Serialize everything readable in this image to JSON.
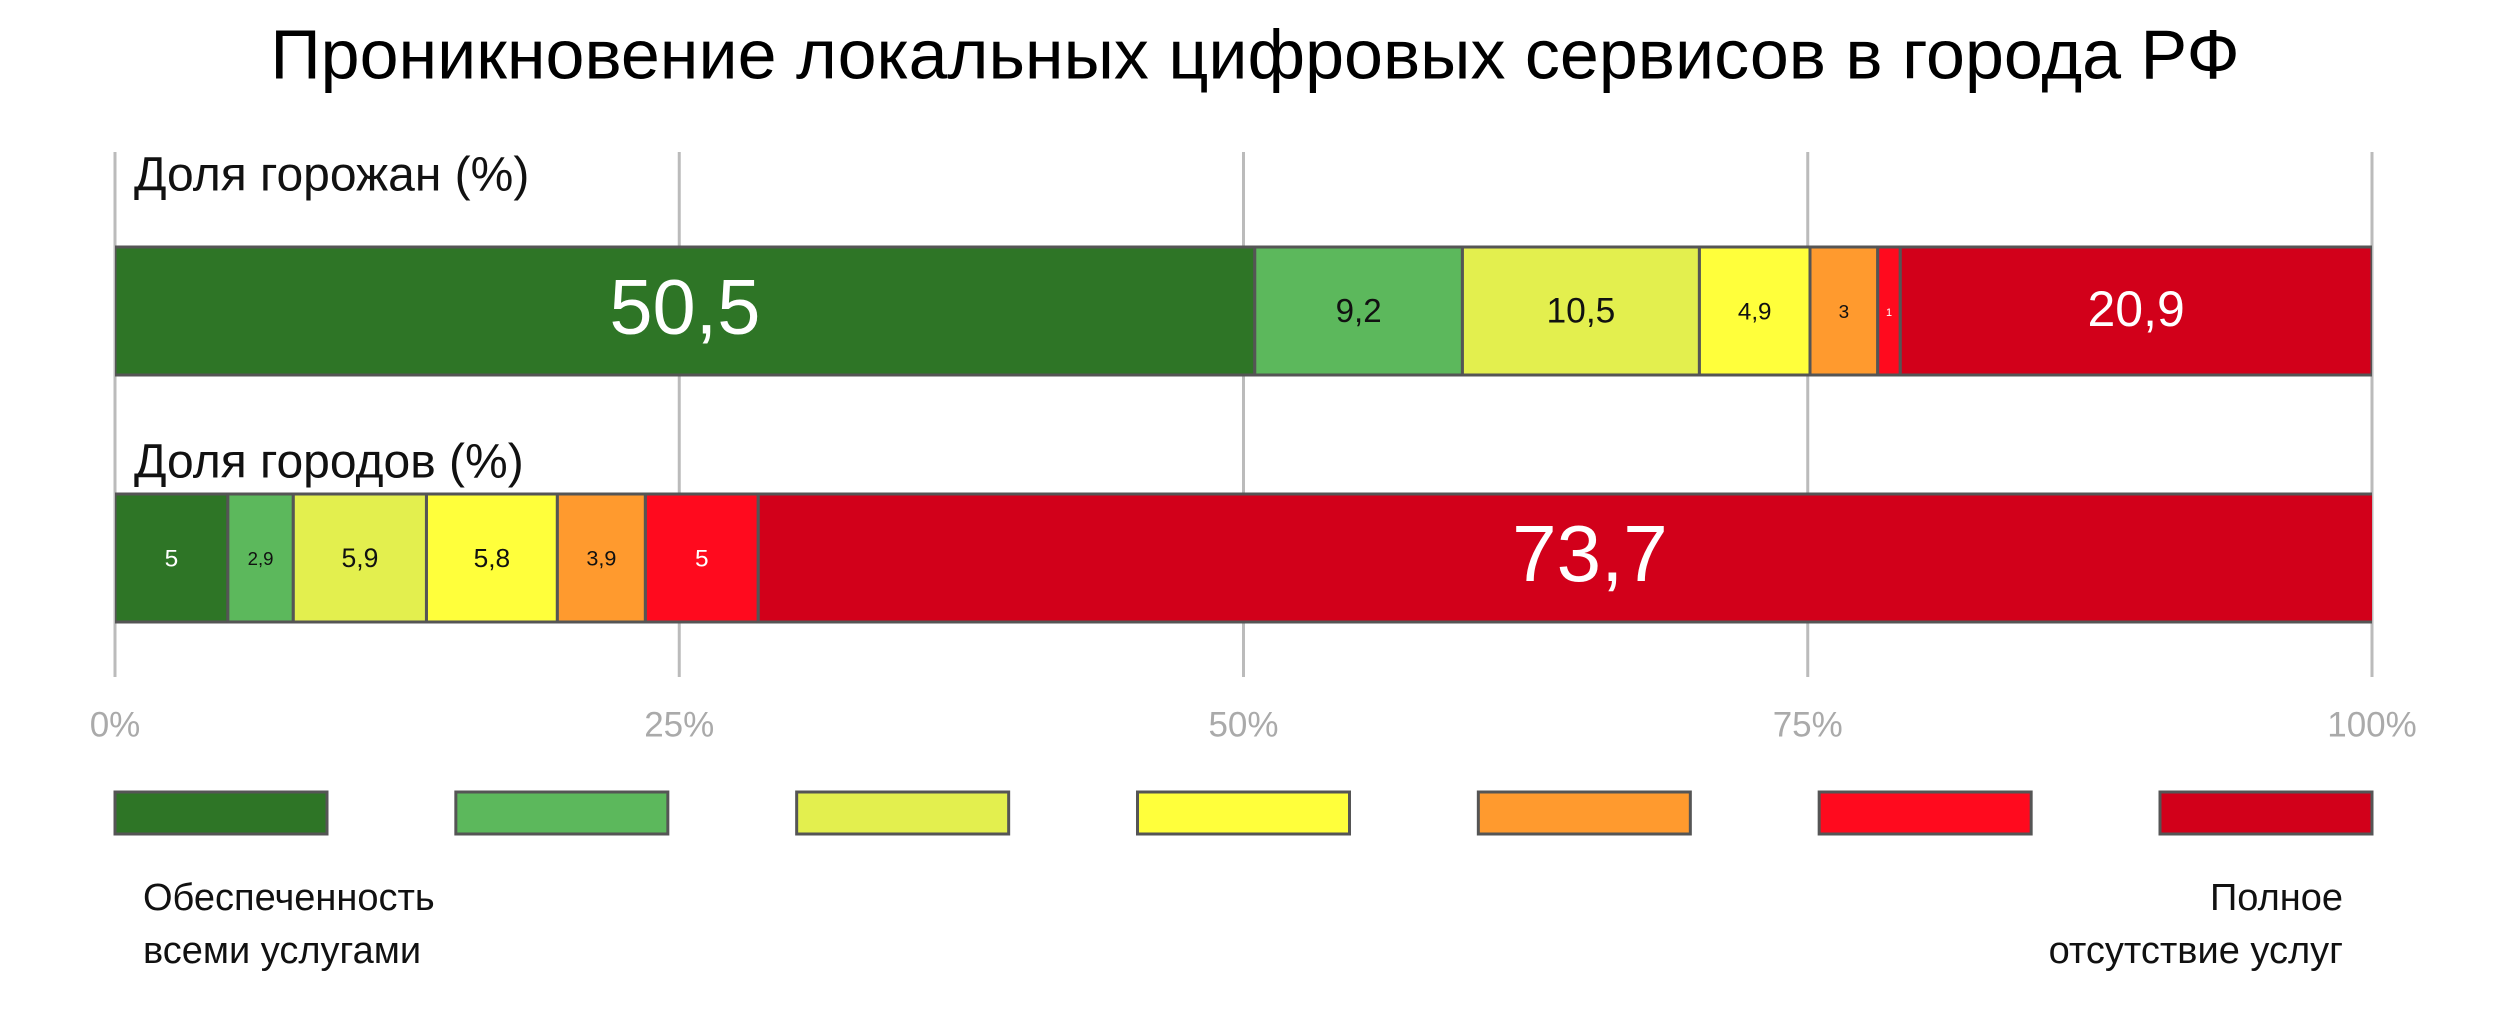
{
  "chart_data": {
    "type": "stacked_bar_horizontal",
    "title": "Проникновение локальных цифровых сервисов в города РФ",
    "categories": [
      "Доля горожан (%)",
      "Доля городов (%)"
    ],
    "series": [
      {
        "color": "#2e7526",
        "values": [
          50.5,
          5
        ],
        "value_labels": [
          "50,5",
          "5"
        ]
      },
      {
        "color": "#5cb85c",
        "values": [
          9.2,
          2.9
        ],
        "value_labels": [
          "9,2",
          "2,9"
        ]
      },
      {
        "color": "#e3ef4e",
        "values": [
          10.5,
          5.9
        ],
        "value_labels": [
          "10,5",
          "5,9"
        ]
      },
      {
        "color": "#ffff3b",
        "values": [
          4.9,
          5.8
        ],
        "value_labels": [
          "4,9",
          "5,8"
        ]
      },
      {
        "color": "#ff9a2e",
        "values": [
          3,
          3.9
        ],
        "value_labels": [
          "3",
          "3,9"
        ]
      },
      {
        "color": "#ff0a1e",
        "values": [
          1,
          5
        ],
        "value_labels": [
          "1",
          "5"
        ]
      },
      {
        "color": "#d2001a",
        "values": [
          20.9,
          73.7
        ],
        "value_labels": [
          "20,9",
          "73,7"
        ]
      }
    ],
    "xlim": [
      0,
      100
    ],
    "xticks": [
      {
        "value": 0,
        "label": "0%"
      },
      {
        "value": 25,
        "label": "25%"
      },
      {
        "value": 50,
        "label": "50%"
      },
      {
        "value": 75,
        "label": "75%"
      },
      {
        "value": 100,
        "label": "100%"
      }
    ],
    "grid": true,
    "legend": {
      "low": "Обеспеченность\nвсеми услугами",
      "high": "Полное\nотсутствие услуг"
    }
  }
}
